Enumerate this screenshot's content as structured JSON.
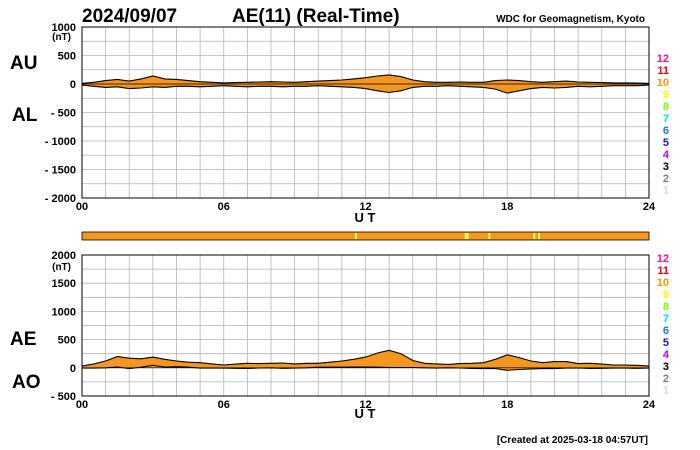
{
  "header": {
    "date": "2024/09/07",
    "title": "AE(11) (Real-Time)",
    "source": "WDC for Geomagnetism, Kyoto"
  },
  "footer": {
    "created": "[Created at 2025-03-18 04:57UT]"
  },
  "colors": {
    "fill": "#f5961e",
    "outline": "#000000",
    "grid": "#b4b4b4",
    "status_bar": "#f5961e",
    "status_marks": "#ffff50"
  },
  "station_legend": {
    "items": [
      {
        "label": "12",
        "color": "#ff1493"
      },
      {
        "label": "11",
        "color": "#e8001c"
      },
      {
        "label": "10",
        "color": "#ff9900"
      },
      {
        "label": "9",
        "color": "#ffff00"
      },
      {
        "label": "8",
        "color": "#7fff00"
      },
      {
        "label": "7",
        "color": "#00e5ee"
      },
      {
        "label": "6",
        "color": "#1e6fff"
      },
      {
        "label": "5",
        "color": "#2020b0"
      },
      {
        "label": "4",
        "color": "#cc00cc"
      },
      {
        "label": "3",
        "color": "#000000"
      },
      {
        "label": "2",
        "color": "#808080"
      },
      {
        "label": "1",
        "color": "#d8d8d8"
      }
    ]
  },
  "status_bar": {
    "marks_hours": [
      11.55,
      16.2,
      16.28,
      17.2,
      19.1,
      19.3
    ]
  },
  "chart_data": [
    {
      "type": "area",
      "upper_label": "AU",
      "lower_label": "AL",
      "unit": "(nT)",
      "xlabel": "U T",
      "xlim": [
        0,
        24
      ],
      "ylim": [
        -2000,
        1000
      ],
      "xticks": [
        0,
        6,
        12,
        18,
        24
      ],
      "xtick_labels": [
        "00",
        "06",
        "12",
        "18",
        "24"
      ],
      "yticks": [
        1000,
        500,
        0,
        -500,
        -1000,
        -1500,
        -2000
      ],
      "ytick_labels": [
        "1000",
        "500",
        "0",
        "- 500",
        "- 1000",
        "- 1500",
        "- 2000"
      ],
      "grid": true,
      "x": [
        0,
        0.5,
        1,
        1.5,
        2,
        2.5,
        3,
        3.5,
        4,
        4.5,
        5,
        5.5,
        6,
        6.5,
        7,
        7.5,
        8,
        8.5,
        9,
        9.5,
        10,
        10.5,
        11,
        11.5,
        12,
        12.5,
        13,
        13.5,
        14,
        14.5,
        15,
        15.5,
        16,
        16.5,
        17,
        17.5,
        18,
        18.5,
        19,
        19.5,
        20,
        20.5,
        21,
        21.5,
        22,
        22.5,
        23,
        23.5,
        24
      ],
      "series": [
        {
          "name": "AU",
          "values": [
            10,
            30,
            60,
            80,
            50,
            90,
            140,
            90,
            80,
            60,
            40,
            30,
            20,
            25,
            30,
            35,
            40,
            35,
            30,
            40,
            50,
            60,
            70,
            90,
            110,
            140,
            160,
            130,
            70,
            40,
            30,
            30,
            35,
            30,
            30,
            60,
            70,
            60,
            40,
            30,
            40,
            50,
            35,
            30,
            25,
            20,
            20,
            15,
            10
          ]
        },
        {
          "name": "AL",
          "values": [
            -20,
            -40,
            -60,
            -50,
            -80,
            -70,
            -50,
            -60,
            -40,
            -40,
            -50,
            -40,
            -30,
            -40,
            -50,
            -40,
            -40,
            -50,
            -40,
            -40,
            -30,
            -40,
            -50,
            -60,
            -80,
            -120,
            -150,
            -120,
            -60,
            -40,
            -40,
            -30,
            -40,
            -50,
            -60,
            -90,
            -160,
            -120,
            -80,
            -60,
            -70,
            -60,
            -40,
            -50,
            -40,
            -30,
            -30,
            -30,
            -20
          ]
        }
      ]
    },
    {
      "type": "area",
      "upper_label": "AE",
      "lower_label": "AO",
      "unit": "(nT)",
      "xlabel": "U T",
      "xlim": [
        0,
        24
      ],
      "ylim": [
        -500,
        2000
      ],
      "xticks": [
        0,
        6,
        12,
        18,
        24
      ],
      "xtick_labels": [
        "00",
        "06",
        "12",
        "18",
        "24"
      ],
      "yticks": [
        2000,
        1500,
        1000,
        500,
        0,
        -500
      ],
      "ytick_labels": [
        "2000",
        "1500",
        "1000",
        "500",
        "0",
        "- 500"
      ],
      "grid": true,
      "x": [
        0,
        0.5,
        1,
        1.5,
        2,
        2.5,
        3,
        3.5,
        4,
        4.5,
        5,
        5.5,
        6,
        6.5,
        7,
        7.5,
        8,
        8.5,
        9,
        9.5,
        10,
        10.5,
        11,
        11.5,
        12,
        12.5,
        13,
        13.5,
        14,
        14.5,
        15,
        15.5,
        16,
        16.5,
        17,
        17.5,
        18,
        18.5,
        19,
        19.5,
        20,
        20.5,
        21,
        21.5,
        22,
        22.5,
        23,
        23.5,
        24
      ],
      "series": [
        {
          "name": "AE",
          "values": [
            30,
            70,
            120,
            200,
            170,
            160,
            190,
            150,
            120,
            100,
            90,
            70,
            50,
            65,
            80,
            75,
            80,
            85,
            70,
            80,
            80,
            100,
            120,
            150,
            190,
            260,
            310,
            250,
            130,
            80,
            70,
            60,
            75,
            80,
            90,
            150,
            230,
            180,
            120,
            90,
            110,
            110,
            75,
            80,
            65,
            50,
            50,
            45,
            30
          ]
        },
        {
          "name": "AO",
          "values": [
            -5,
            -5,
            0,
            15,
            -15,
            10,
            45,
            15,
            20,
            10,
            -5,
            -5,
            -5,
            -8,
            -10,
            -3,
            0,
            -8,
            -5,
            0,
            10,
            10,
            10,
            15,
            15,
            10,
            5,
            5,
            5,
            0,
            -5,
            0,
            -3,
            -10,
            -15,
            -15,
            -45,
            -30,
            -20,
            -15,
            -15,
            -5,
            -3,
            -10,
            -8,
            -5,
            -5,
            -8,
            -5
          ]
        }
      ]
    }
  ]
}
